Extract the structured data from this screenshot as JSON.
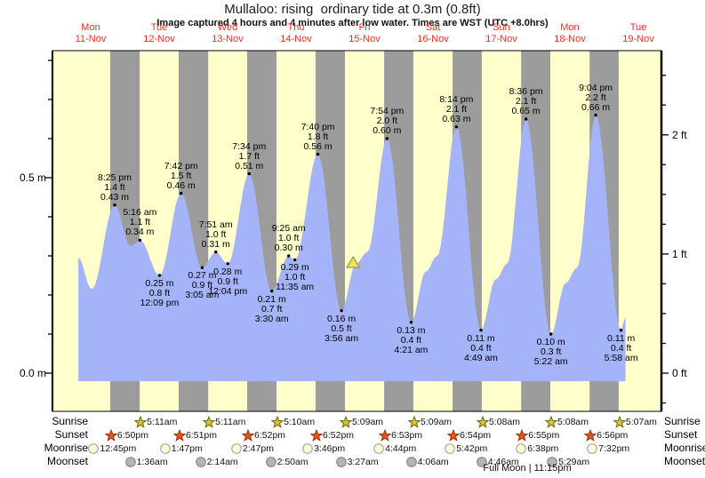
{
  "title": "Mullaloo: rising  ordinary tide at 0.3m (0.8ft)",
  "subtitle": "Image captured 4 hours and 4 minutes after low water. Times are WST (UTC +8.0hrs)",
  "colors": {
    "plot_day_bg": "#ffffcc",
    "night_band": "#9c9c9c",
    "tide_fill": "#a5b3f8",
    "day_label_red": "#fb2b24",
    "marker_fill": "#e8e464",
    "marker_stroke": "#8c8c1e",
    "sunrise_star_fill": "#d2c43c",
    "sunrise_star_stroke": "#6f6400",
    "sunset_star_fill": "#e0561e",
    "sunset_star_stroke": "#96330a",
    "moonrise_fill": "#ffffd6",
    "moonrise_stroke": "#9a9a9a",
    "moonset_fill": "#b5b5b5",
    "moonset_stroke": "#7f7f7f"
  },
  "chart_data": {
    "type": "area",
    "title": "Mullaloo: rising  ordinary tide at 0.3m (0.8ft)",
    "days": [
      {
        "name": "Mon",
        "date": "11-Nov"
      },
      {
        "name": "Tue",
        "date": "12-Nov"
      },
      {
        "name": "Wed",
        "date": "13-Nov"
      },
      {
        "name": "Thu",
        "date": "14-Nov"
      },
      {
        "name": "Fri",
        "date": "15-Nov"
      },
      {
        "name": "Sat",
        "date": "16-Nov"
      },
      {
        "name": "Sun",
        "date": "17-Nov"
      },
      {
        "name": "Mon",
        "date": "18-Nov"
      },
      {
        "name": "Tue",
        "date": "19-Nov"
      }
    ],
    "y_axis_left": {
      "unit": "m",
      "labels": [
        {
          "text": "0.5 m",
          "value": 0.5
        },
        {
          "text": "0.0 m",
          "value": 0.0
        }
      ]
    },
    "y_axis_right": {
      "unit": "ft",
      "labels": [
        {
          "text": "2 ft",
          "value": 2
        },
        {
          "text": "1 ft",
          "value": 1
        },
        {
          "text": "0 ft",
          "value": 0
        }
      ]
    },
    "curve": [
      {
        "day": 0,
        "time": "7:40 am",
        "m": 0.295
      },
      {
        "day": 0,
        "time": "12:20 pm",
        "m": 0.215
      },
      {
        "day": 0,
        "time": "8:25 pm",
        "m": 0.43,
        "ft": "1.4 ft",
        "kind": "high"
      },
      {
        "day": 1,
        "time": "2:00 am",
        "m": 0.325
      },
      {
        "day": 1,
        "time": "5:16 am",
        "m": 0.34,
        "ft": "1.1 ft",
        "kind": "high"
      },
      {
        "day": 1,
        "time": "12:09 pm",
        "m": 0.25,
        "ft": "0.8 ft",
        "kind": "low"
      },
      {
        "day": 1,
        "time": "7:42 pm",
        "m": 0.46,
        "ft": "1.5 ft",
        "kind": "high"
      },
      {
        "day": 2,
        "time": "3:05 am",
        "m": 0.27,
        "ft": "0.9 ft",
        "kind": "low"
      },
      {
        "day": 2,
        "time": "7:51 am",
        "m": 0.31,
        "ft": "1.0 ft",
        "kind": "high"
      },
      {
        "day": 2,
        "time": "12:04 pm",
        "m": 0.28,
        "ft": "0.9 ft",
        "kind": "low"
      },
      {
        "day": 2,
        "time": "7:34 pm",
        "m": 0.51,
        "ft": "1.7 ft",
        "kind": "high"
      },
      {
        "day": 3,
        "time": "3:30 am",
        "m": 0.21,
        "ft": "0.7 ft",
        "kind": "low"
      },
      {
        "day": 3,
        "time": "9:25 am",
        "m": 0.3,
        "ft": "1.0 ft",
        "kind": "high"
      },
      {
        "day": 3,
        "time": "11:35 am",
        "m": 0.29,
        "ft": "1.0 ft",
        "kind": "low"
      },
      {
        "day": 3,
        "time": "7:40 pm",
        "m": 0.56,
        "ft": "1.8 ft",
        "kind": "high"
      },
      {
        "day": 4,
        "time": "3:56 am",
        "m": 0.16,
        "ft": "0.5 ft",
        "kind": "low"
      },
      {
        "day": 4,
        "time": "9:00 am",
        "m": 0.28
      },
      {
        "day": 4,
        "time": "1:00 pm",
        "m": 0.31
      },
      {
        "day": 4,
        "time": "7:54 pm",
        "m": 0.6,
        "ft": "2.0 ft",
        "kind": "high"
      },
      {
        "day": 5,
        "time": "4:21 am",
        "m": 0.13,
        "ft": "0.4 ft",
        "kind": "low"
      },
      {
        "day": 5,
        "time": "9:30 am",
        "m": 0.26
      },
      {
        "day": 5,
        "time": "1:30 pm",
        "m": 0.3
      },
      {
        "day": 5,
        "time": "8:14 pm",
        "m": 0.63,
        "ft": "2.1 ft",
        "kind": "high"
      },
      {
        "day": 6,
        "time": "4:49 am",
        "m": 0.11,
        "ft": "0.4 ft",
        "kind": "low"
      },
      {
        "day": 6,
        "time": "10:00 am",
        "m": 0.24
      },
      {
        "day": 6,
        "time": "2:00 pm",
        "m": 0.28
      },
      {
        "day": 6,
        "time": "8:36 pm",
        "m": 0.65,
        "ft": "2.1 ft",
        "kind": "high"
      },
      {
        "day": 7,
        "time": "5:22 am",
        "m": 0.1,
        "ft": "0.3 ft",
        "kind": "low"
      },
      {
        "day": 7,
        "time": "10:30 am",
        "m": 0.23
      },
      {
        "day": 7,
        "time": "2:30 pm",
        "m": 0.27
      },
      {
        "day": 7,
        "time": "9:04 pm",
        "m": 0.66,
        "ft": "2.2 ft",
        "kind": "high"
      },
      {
        "day": 8,
        "time": "5:58 am",
        "m": 0.11,
        "ft": "0.4 ft",
        "kind": "low"
      },
      {
        "day": 8,
        "time": "7:30 am",
        "m": 0.145
      }
    ],
    "current_marker": {
      "day": 4,
      "time": "8:00 am",
      "m": 0.3
    }
  },
  "astro": {
    "rows": [
      {
        "label": "Sunrise",
        "icon": "sunrise-star",
        "items": [
          {
            "day": 1,
            "time": "5:11am"
          },
          {
            "day": 2,
            "time": "5:11am"
          },
          {
            "day": 3,
            "time": "5:10am"
          },
          {
            "day": 4,
            "time": "5:09am"
          },
          {
            "day": 5,
            "time": "5:09am"
          },
          {
            "day": 6,
            "time": "5:08am"
          },
          {
            "day": 7,
            "time": "5:08am"
          },
          {
            "day": 8,
            "time": "5:07am"
          }
        ]
      },
      {
        "label": "Sunset",
        "icon": "sunset-star",
        "items": [
          {
            "day": 0,
            "time": "6:50pm"
          },
          {
            "day": 1,
            "time": "6:51pm"
          },
          {
            "day": 2,
            "time": "6:52pm"
          },
          {
            "day": 3,
            "time": "6:52pm"
          },
          {
            "day": 4,
            "time": "6:53pm"
          },
          {
            "day": 5,
            "time": "6:54pm"
          },
          {
            "day": 6,
            "time": "6:55pm"
          },
          {
            "day": 7,
            "time": "6:56pm"
          }
        ]
      },
      {
        "label": "Moonrise",
        "icon": "moonrise-circle",
        "items": [
          {
            "day": 0,
            "time": "12:45pm"
          },
          {
            "day": 1,
            "time": "1:47pm"
          },
          {
            "day": 2,
            "time": "2:47pm"
          },
          {
            "day": 3,
            "time": "3:46pm"
          },
          {
            "day": 4,
            "time": "4:44pm"
          },
          {
            "day": 5,
            "time": "5:42pm"
          },
          {
            "day": 6,
            "time": "6:38pm"
          },
          {
            "day": 7,
            "time": "7:32pm"
          }
        ]
      },
      {
        "label": "Moonset",
        "icon": "moonset-circle",
        "items": [
          {
            "day": 1,
            "time": "1:36am"
          },
          {
            "day": 2,
            "time": "2:14am"
          },
          {
            "day": 3,
            "time": "2:50am"
          },
          {
            "day": 4,
            "time": "3:27am"
          },
          {
            "day": 5,
            "time": "4:06am"
          },
          {
            "day": 6,
            "time": "4:46am"
          },
          {
            "day": 7,
            "time": "5:29am"
          }
        ]
      }
    ],
    "footnote": "Full Moon | 11:15pm"
  }
}
